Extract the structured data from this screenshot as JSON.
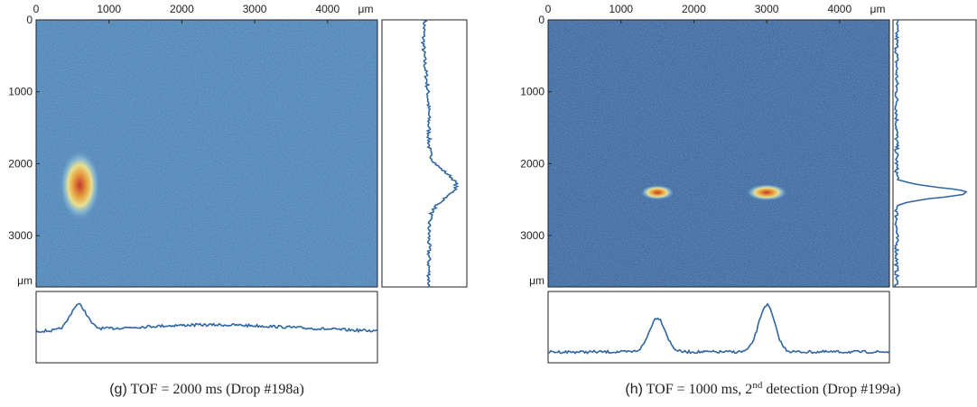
{
  "chart_data": [
    {
      "type": "image",
      "xlim": [
        0,
        4684
      ],
      "ylim": [
        0,
        3714
      ],
      "xticks": [
        0,
        1000,
        2000,
        3000,
        4000
      ],
      "yticks": [
        0,
        1000,
        2000,
        3000
      ],
      "x_unit": "μm",
      "y_unit": "μm",
      "color": "#3b78b0",
      "caption_label": "(g)",
      "caption": "TOF = 2000 ms (Drop #198a)"
    },
    {
      "type": "image",
      "xlim": [
        0,
        4684
      ],
      "ylim": [
        0,
        3714
      ],
      "xticks": [
        0,
        1000,
        2000,
        3000,
        4000
      ],
      "yticks": [
        0,
        1000,
        2000,
        3000
      ],
      "x_unit": "μm",
      "y_unit": "μm",
      "color": "#285a98",
      "caption_label": "(h)",
      "caption": "TOF = 1000 ms, 2",
      "caption_sup": "nd",
      "caption_after": " detection (Drop #199a)"
    }
  ]
}
